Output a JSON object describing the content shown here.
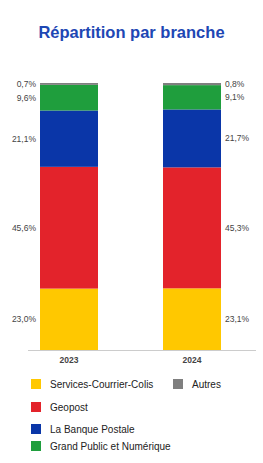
{
  "chart_data": {
    "type": "bar",
    "title": "Répartition par branche",
    "categories": [
      "2023",
      "2024"
    ],
    "stacked": true,
    "data_labels": true,
    "tick_labels": "x",
    "legend": "bottom",
    "ylim": [
      0,
      100
    ],
    "series": [
      {
        "name": "Services-Courrier-Colis",
        "color": "#ffc800",
        "values": [
          23.0,
          23.1
        ],
        "value_labels": [
          "23,0%",
          "23,1%"
        ]
      },
      {
        "name": "Geopost",
        "color": "#e3232b",
        "values": [
          45.6,
          45.3
        ],
        "value_labels": [
          "45,6%",
          "45,3%"
        ]
      },
      {
        "name": "La Banque Postale",
        "color": "#0a36a8",
        "values": [
          21.1,
          21.7
        ],
        "value_labels": [
          "21,1%",
          "21,7%"
        ]
      },
      {
        "name": "Grand Public et Numérique",
        "color": "#1f9e3d",
        "values": [
          9.6,
          9.1
        ],
        "value_labels": [
          "9,6%",
          "9,1%"
        ]
      },
      {
        "name": "Autres",
        "color": "#7f7f7f",
        "values": [
          0.7,
          0.8
        ],
        "value_labels": [
          "0,7%",
          "0,8%"
        ]
      }
    ]
  }
}
